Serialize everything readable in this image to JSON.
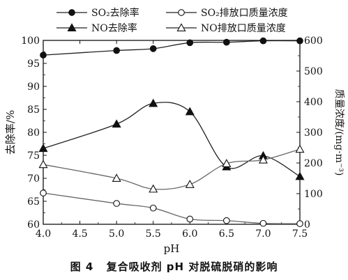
{
  "caption": {
    "figure_no": "图 4",
    "text": "复合吸收剂 pH 对脱硫脱硝的影响"
  },
  "chart_data": {
    "type": "line",
    "xlabel": "pH",
    "ylabel_left": "去除率/%",
    "ylabel_right": "质量浓度/(mg·m⁻³)",
    "xlim": [
      4.0,
      7.5
    ],
    "ylim_left": [
      60,
      100
    ],
    "ylim_right": [
      0,
      600
    ],
    "x_ticks": [
      "4.0",
      "4.5",
      "5.0",
      "5.5",
      "6.0",
      "6.5",
      "7.0",
      "7.5"
    ],
    "y_left_ticks": [
      "60",
      "65",
      "70",
      "75",
      "80",
      "85",
      "90",
      "95",
      "100"
    ],
    "y_right_ticks": [
      "0",
      "100",
      "200",
      "300",
      "400",
      "500",
      "600"
    ],
    "x": [
      4.0,
      5.0,
      5.5,
      6.0,
      6.5,
      7.0,
      7.5
    ],
    "legend_placement": "top",
    "series": [
      {
        "name": "SO₂去除率",
        "axis": "left",
        "marker": "circle-filled",
        "values": [
          96.8,
          97.8,
          98.2,
          99.5,
          99.6,
          99.9,
          99.9
        ]
      },
      {
        "name": "SO₂排放口质量浓度",
        "axis": "right",
        "marker": "circle-open",
        "values": [
          102,
          68,
          53,
          17,
          12,
          3,
          2
        ]
      },
      {
        "name": "NO去除率",
        "axis": "left",
        "marker": "triangle-filled",
        "values": [
          76.5,
          81.8,
          86.3,
          84.5,
          72.5,
          74.9,
          70.4
        ]
      },
      {
        "name": "NO排放口质量浓度",
        "axis": "right",
        "marker": "triangle-open",
        "values": [
          195,
          150,
          115,
          130,
          198,
          210,
          245
        ]
      }
    ]
  }
}
